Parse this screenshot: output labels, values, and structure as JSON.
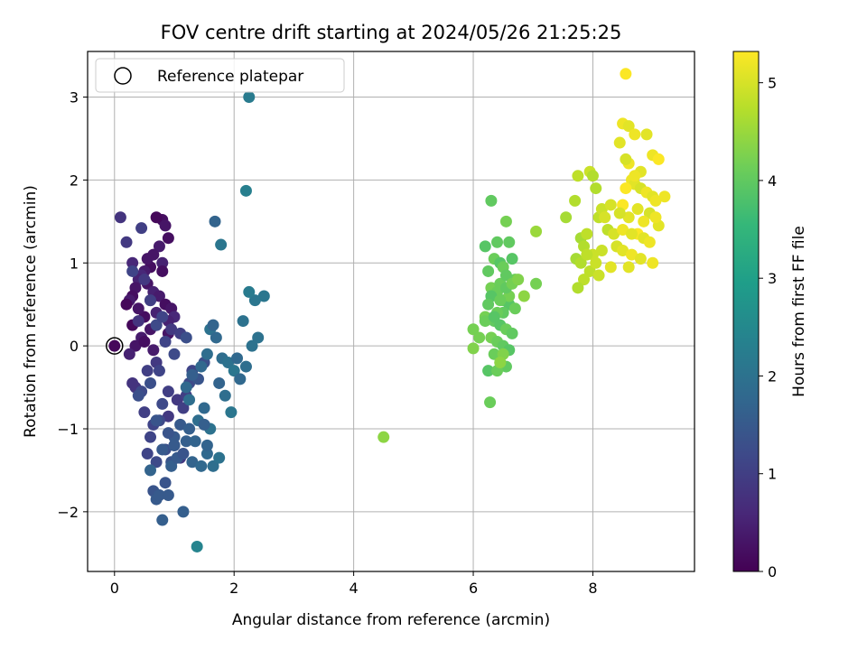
{
  "chart_data": {
    "type": "scatter",
    "title": "FOV centre drift starting at 2024/05/26 21:25:25",
    "xlabel": "Angular distance from reference (arcmin)",
    "ylabel": "Rotation from reference (arcmin)",
    "xlim": [
      -0.45,
      9.7
    ],
    "ylim": [
      -2.72,
      3.55
    ],
    "xticks": [
      0,
      2,
      4,
      6,
      8
    ],
    "yticks": [
      -2,
      -1,
      0,
      1,
      2,
      3
    ],
    "grid": true,
    "legend": {
      "placement": "upper-left",
      "entries": [
        "Reference platepar"
      ]
    },
    "reference_point": {
      "x": 0,
      "y": 0,
      "label": "Reference platepar"
    },
    "colorbar": {
      "label": "Hours from first FF file",
      "min": 0,
      "max": 5.32,
      "ticks": [
        0,
        1,
        2,
        3,
        4,
        5
      ],
      "colormap": [
        "#440154",
        "#482878",
        "#3e4989",
        "#31688e",
        "#26828e",
        "#1f9e89",
        "#35b779",
        "#6ece58",
        "#b5de2b",
        "#fde725"
      ]
    },
    "series": [
      {
        "hours": [
          0.2,
          0.3,
          0.1,
          0.2,
          0.4,
          0.3,
          0.5,
          0.2,
          0.3,
          0.4,
          0.6,
          0.5,
          0.3,
          0.2,
          0.4,
          0.1,
          0.3,
          0.5,
          0.4,
          0.2,
          0.3,
          0.6,
          0.5,
          0.4,
          0.3,
          0.2,
          0.4,
          0.3,
          0.5,
          0.6,
          0.2,
          0.4,
          0.3,
          0.5,
          0.2,
          0.1,
          0.3,
          0.4
        ],
        "x": [
          0.8,
          0.85,
          0.7,
          0.9,
          0.75,
          0.65,
          0.8,
          0.6,
          0.55,
          0.5,
          0.45,
          0.4,
          0.35,
          0.3,
          0.25,
          0.2,
          0.55,
          0.65,
          0.75,
          0.85,
          0.95,
          1.0,
          0.9,
          0.7,
          0.6,
          0.5,
          0.45,
          0.35,
          0.25,
          0.3,
          0.8,
          0.6,
          0.4,
          0.7,
          0.5,
          0.3,
          0.9,
          0.65
        ],
        "y": [
          1.52,
          1.45,
          1.55,
          1.3,
          1.2,
          1.1,
          1.0,
          0.95,
          1.05,
          0.9,
          0.85,
          0.8,
          0.7,
          0.6,
          0.55,
          0.5,
          0.75,
          0.65,
          0.6,
          0.5,
          0.45,
          0.35,
          0.3,
          0.25,
          0.2,
          0.35,
          0.1,
          0.0,
          -0.1,
          1.0,
          0.9,
          0.55,
          0.45,
          0.4,
          0.05,
          0.25,
          0.15,
          -0.05
        ]
      },
      {
        "hours": [
          0.8,
          0.9,
          1.0,
          1.1,
          0.9,
          1.0,
          0.8,
          1.2,
          1.1,
          0.9,
          1.0,
          1.3,
          1.2,
          1.1,
          0.9,
          1.0,
          0.8,
          1.2,
          1.3,
          1.1,
          1.0,
          0.9,
          1.2,
          1.4,
          1.3,
          1.1,
          1.0,
          0.9,
          1.2,
          1.1,
          1.0,
          1.3,
          0.8,
          1.2,
          1.1,
          1.0,
          0.9,
          1.4,
          1.3,
          1.2,
          1.1,
          1.0
        ],
        "x": [
          0.1,
          0.2,
          0.45,
          0.3,
          0.5,
          0.6,
          0.4,
          0.7,
          0.8,
          0.95,
          1.1,
          1.2,
          1.0,
          0.85,
          0.7,
          0.55,
          0.35,
          0.45,
          0.6,
          0.75,
          0.9,
          1.05,
          1.25,
          1.4,
          1.5,
          1.3,
          1.15,
          0.9,
          0.8,
          0.65,
          0.5,
          0.4,
          0.3,
          0.75,
          0.6,
          1.0,
          1.1,
          0.95,
          0.85,
          0.7,
          0.55,
          1.2
        ],
        "y": [
          1.55,
          1.25,
          1.42,
          0.9,
          0.8,
          0.55,
          0.3,
          0.25,
          0.35,
          0.2,
          0.15,
          0.1,
          -0.1,
          0.05,
          -0.2,
          -0.3,
          -0.5,
          -0.55,
          -0.45,
          -0.3,
          -0.55,
          -0.65,
          -0.45,
          -0.4,
          -0.2,
          -0.3,
          -0.75,
          -0.85,
          -0.7,
          -0.95,
          -0.8,
          -0.6,
          -0.45,
          -0.9,
          -1.1,
          -1.2,
          -1.35,
          -1.4,
          -1.25,
          -1.4,
          -1.3,
          -0.6
        ]
      },
      {
        "hours": [
          1.4,
          1.5,
          1.5,
          1.6,
          1.4,
          1.5,
          1.7,
          1.6,
          1.5,
          1.4,
          1.6,
          1.5,
          1.4,
          1.5,
          1.6,
          1.5,
          1.4,
          1.5,
          1.7,
          1.6
        ],
        "x": [
          0.65,
          0.7,
          0.75,
          0.8,
          0.85,
          0.9,
          0.6,
          0.95,
          1.05,
          1.15,
          1.2,
          1.0,
          0.7,
          1.1,
          1.25,
          0.8,
          0.9,
          1.0,
          1.3,
          1.15
        ],
        "y": [
          -1.75,
          -1.85,
          -1.8,
          -2.1,
          -1.65,
          -1.8,
          -1.5,
          -1.45,
          -1.35,
          -1.3,
          -1.15,
          -1.1,
          -0.9,
          -0.95,
          -1.0,
          -1.25,
          -1.05,
          -1.2,
          -1.4,
          -2.0
        ]
      },
      {
        "hours": [
          1.6,
          1.8,
          1.9,
          2.0,
          1.7,
          1.8,
          1.9,
          2.0,
          2.1,
          1.8,
          1.9,
          2.0,
          2.1,
          1.7,
          1.8,
          1.9,
          2.0,
          2.1,
          2.2,
          1.8,
          1.9,
          2.0,
          1.7,
          1.8,
          1.9,
          2.0,
          2.1,
          1.8,
          1.9,
          2.0,
          1.6,
          1.7,
          1.8
        ],
        "x": [
          1.3,
          1.45,
          1.55,
          1.6,
          1.65,
          1.7,
          1.8,
          1.9,
          2.0,
          2.1,
          2.2,
          2.3,
          2.5,
          1.75,
          2.05,
          1.85,
          2.15,
          2.35,
          2.25,
          1.5,
          1.4,
          1.6,
          1.35,
          1.55,
          1.65,
          1.75,
          1.95,
          1.2,
          1.25,
          2.4,
          1.5,
          1.55,
          1.45
        ],
        "y": [
          -0.35,
          -0.25,
          -0.1,
          0.2,
          0.25,
          0.1,
          -0.15,
          -0.2,
          -0.3,
          -0.4,
          -0.25,
          0.0,
          0.6,
          -0.45,
          -0.15,
          -0.6,
          0.3,
          0.55,
          0.65,
          -0.75,
          -0.9,
          -1.0,
          -1.15,
          -1.3,
          -1.45,
          -1.35,
          -0.8,
          -0.5,
          -0.65,
          0.1,
          -0.95,
          -1.2,
          -1.45
        ]
      },
      {
        "hours": [
          1.7,
          2.1,
          2.2,
          2.3,
          2.4
        ],
        "x": [
          1.68,
          1.78,
          2.25,
          2.2,
          1.38
        ],
        "y": [
          1.5,
          1.22,
          3.0,
          1.87,
          -2.42
        ]
      },
      {
        "hours": [
          3.9,
          4.0,
          4.1,
          4.0,
          3.9,
          4.1,
          4.2,
          4.0,
          3.9,
          4.1,
          4.0,
          4.2,
          4.1,
          4.0,
          3.9,
          4.1,
          4.2,
          4.0,
          3.9,
          4.1,
          4.0,
          4.2,
          4.1,
          4.0,
          3.9,
          4.1,
          4.2,
          4.0,
          3.9,
          4.1,
          4.0,
          4.2,
          4.1,
          4.0,
          3.9,
          4.1,
          4.3,
          4.2,
          4.3,
          4.2,
          4.1,
          4.0,
          3.9,
          4.1,
          4.0,
          4.2,
          4.1,
          4.4
        ],
        "x": [
          6.2,
          6.3,
          6.35,
          6.4,
          6.45,
          6.5,
          6.55,
          6.6,
          6.65,
          6.7,
          6.25,
          6.3,
          6.4,
          6.5,
          6.6,
          6.7,
          6.2,
          6.35,
          6.45,
          6.55,
          6.65,
          6.3,
          6.4,
          6.5,
          6.6,
          6.35,
          6.45,
          6.55,
          6.25,
          6.4,
          6.5,
          6.6,
          6.45,
          6.55,
          6.3,
          6.4,
          6.5,
          6.0,
          6.0,
          6.1,
          6.2,
          6.25,
          6.35,
          6.45,
          6.55,
          6.65,
          6.28,
          4.5
        ],
        "y": [
          1.2,
          1.75,
          1.05,
          1.25,
          1.0,
          0.95,
          1.5,
          1.25,
          1.05,
          0.8,
          0.9,
          0.7,
          0.65,
          0.55,
          0.5,
          0.45,
          0.35,
          0.3,
          0.25,
          0.2,
          0.15,
          0.1,
          0.05,
          0.0,
          -0.05,
          -0.1,
          -0.2,
          -0.25,
          -0.3,
          -0.3,
          0.4,
          0.6,
          0.75,
          0.85,
          0.6,
          0.4,
          -0.1,
          0.2,
          -0.03,
          0.1,
          0.3,
          0.5,
          0.35,
          0.55,
          0.7,
          0.75,
          -0.68,
          -1.1
        ]
      },
      {
        "hours": [
          4.3,
          4.4,
          4.2,
          4.5,
          4.4
        ],
        "x": [
          6.75,
          6.85,
          7.05,
          7.05,
          6.45
        ],
        "y": [
          0.8,
          0.6,
          0.75,
          1.38,
          -0.2
        ]
      },
      {
        "hours": [
          4.6,
          4.7,
          4.8,
          4.6,
          4.7,
          4.8,
          4.9,
          4.6,
          4.7,
          4.8,
          4.9,
          4.7,
          4.8,
          4.9,
          5.0,
          4.8,
          4.9,
          5.0,
          4.7,
          4.8,
          4.9,
          5.0,
          4.9,
          5.0,
          4.8,
          4.7
        ],
        "x": [
          7.55,
          7.7,
          7.75,
          7.8,
          7.85,
          7.9,
          7.95,
          7.72,
          7.8,
          7.95,
          8.0,
          8.05,
          8.1,
          8.15,
          8.2,
          8.25,
          8.1,
          8.3,
          8.0,
          7.85,
          8.15,
          8.35,
          8.05,
          8.4,
          7.9,
          7.75
        ],
        "y": [
          1.55,
          1.75,
          2.05,
          1.3,
          1.2,
          1.35,
          2.1,
          1.05,
          1.0,
          0.9,
          1.1,
          1.9,
          1.55,
          1.65,
          1.55,
          1.4,
          0.85,
          1.7,
          2.05,
          0.8,
          1.15,
          1.35,
          1.0,
          1.2,
          1.1,
          0.7
        ]
      },
      {
        "hours": [
          5.3,
          5.2,
          5.1,
          5.2,
          5.1,
          5.2,
          5.0,
          5.1,
          5.2,
          5.3,
          5.1,
          5.2,
          5.1,
          5.0,
          5.2,
          5.1,
          5.2,
          5.3,
          5.1,
          5.2,
          5.0,
          5.1,
          5.2,
          5.1,
          5.2,
          5.3,
          5.1,
          5.2,
          5.0,
          5.1,
          5.2,
          5.1,
          5.2,
          5.1,
          5.3,
          5.2,
          5.0,
          5.1,
          5.2,
          5.1
        ],
        "x": [
          8.55,
          8.5,
          8.6,
          8.7,
          8.45,
          8.6,
          8.55,
          8.9,
          9.0,
          9.1,
          8.8,
          8.65,
          8.7,
          8.8,
          8.9,
          9.0,
          9.05,
          8.5,
          8.75,
          9.2,
          8.95,
          8.6,
          8.85,
          9.1,
          8.5,
          8.75,
          8.85,
          8.95,
          8.4,
          8.5,
          8.65,
          8.8,
          9.0,
          8.6,
          8.55,
          8.7,
          8.45,
          8.65,
          9.05,
          8.3
        ],
        "y": [
          3.28,
          2.68,
          2.65,
          2.55,
          2.45,
          2.2,
          2.25,
          2.55,
          2.3,
          2.25,
          2.1,
          2.0,
          1.95,
          1.9,
          1.85,
          1.8,
          1.75,
          1.7,
          1.65,
          1.8,
          1.6,
          1.55,
          1.5,
          1.45,
          1.4,
          1.35,
          1.3,
          1.25,
          1.2,
          1.15,
          1.1,
          1.05,
          1.0,
          0.95,
          1.9,
          2.05,
          1.6,
          1.35,
          1.55,
          0.95
        ]
      }
    ]
  }
}
